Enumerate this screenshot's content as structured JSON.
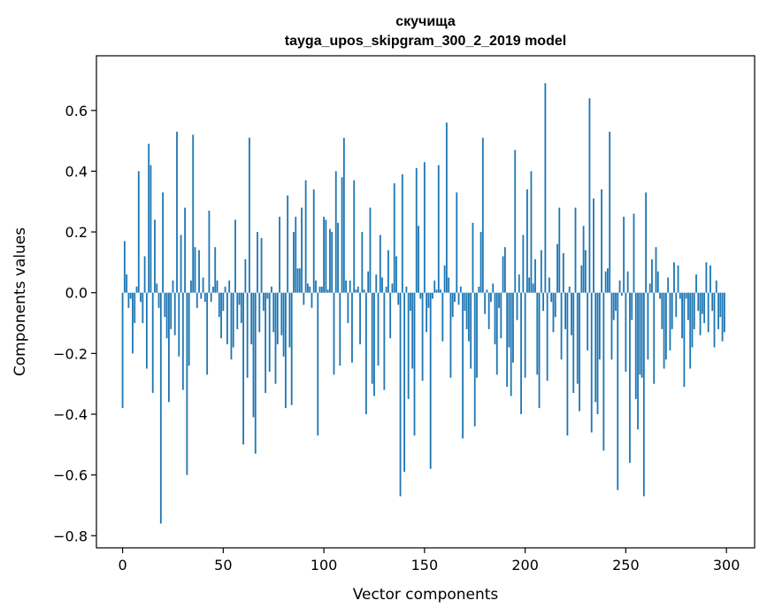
{
  "chart_data": {
    "type": "bar",
    "title_line1": "скучища",
    "title_line2": "tayga_upos_skipgram_300_2_2019 model",
    "xlabel": "Vector components",
    "ylabel": "Components values",
    "xlim": [
      -13,
      314
    ],
    "ylim": [
      -0.84,
      0.78
    ],
    "xticks": [
      0,
      50,
      100,
      150,
      200,
      250,
      300
    ],
    "xtick_labels": [
      "0",
      "50",
      "100",
      "150",
      "200",
      "250",
      "300"
    ],
    "yticks": [
      -0.8,
      -0.6,
      -0.4,
      -0.2,
      0.0,
      0.2,
      0.4,
      0.6
    ],
    "ytick_labels": [
      "−0.8",
      "−0.6",
      "−0.4",
      "−0.2",
      "0.0",
      "0.2",
      "0.4",
      "0.6"
    ],
    "bar_color": "#1f77b4",
    "grid": false,
    "legend": "none",
    "values": [
      -0.38,
      0.17,
      0.06,
      -0.05,
      -0.02,
      -0.2,
      -0.1,
      0.02,
      0.4,
      -0.03,
      -0.1,
      0.12,
      -0.25,
      0.49,
      0.42,
      -0.33,
      0.24,
      0.03,
      -0.05,
      -0.76,
      0.33,
      -0.08,
      -0.15,
      -0.36,
      -0.12,
      0.04,
      -0.14,
      0.53,
      -0.21,
      0.19,
      -0.32,
      0.28,
      -0.6,
      -0.24,
      0.04,
      0.52,
      0.15,
      -0.05,
      0.14,
      -0.02,
      0.05,
      -0.03,
      -0.27,
      0.27,
      -0.03,
      0.02,
      0.15,
      0.04,
      -0.08,
      -0.15,
      -0.06,
      0.02,
      -0.17,
      0.04,
      -0.22,
      -0.18,
      0.24,
      -0.12,
      -0.04,
      -0.1,
      -0.5,
      0.11,
      -0.28,
      0.51,
      -0.17,
      -0.41,
      -0.53,
      0.2,
      -0.13,
      0.18,
      -0.06,
      -0.33,
      -0.02,
      -0.26,
      0.02,
      -0.13,
      -0.3,
      -0.17,
      0.25,
      -0.14,
      -0.21,
      -0.38,
      0.32,
      -0.18,
      -0.37,
      0.2,
      0.25,
      0.08,
      0.08,
      0.28,
      -0.04,
      0.37,
      0.03,
      0.02,
      -0.05,
      0.34,
      0.04,
      -0.47,
      0.02,
      0.02,
      0.25,
      0.24,
      0.01,
      0.21,
      0.2,
      -0.27,
      0.4,
      0.23,
      -0.24,
      0.38,
      0.51,
      0.04,
      -0.1,
      0.04,
      -0.23,
      0.37,
      0.01,
      0.02,
      -0.17,
      0.2,
      0.01,
      -0.4,
      0.07,
      0.28,
      -0.3,
      -0.34,
      0.06,
      -0.24,
      0.19,
      0.05,
      -0.32,
      0.02,
      0.14,
      -0.15,
      0.03,
      0.36,
      0.12,
      -0.04,
      -0.67,
      0.39,
      -0.59,
      0.02,
      -0.35,
      -0.06,
      -0.25,
      -0.47,
      0.41,
      0.22,
      -0.02,
      -0.29,
      0.43,
      -0.13,
      -0.05,
      -0.58,
      -0.02,
      0.04,
      0.01,
      0.42,
      0.01,
      -0.16,
      0.09,
      0.56,
      0.05,
      -0.28,
      -0.08,
      -0.03,
      0.33,
      -0.04,
      0.02,
      -0.48,
      -0.06,
      -0.12,
      -0.16,
      -0.25,
      0.23,
      -0.44,
      -0.28,
      0.02,
      0.2,
      0.51,
      -0.07,
      0.01,
      -0.12,
      -0.03,
      0.03,
      -0.17,
      -0.27,
      -0.05,
      -0.15,
      0.12,
      0.15,
      -0.31,
      -0.18,
      -0.34,
      -0.23,
      0.47,
      -0.09,
      0.06,
      -0.4,
      0.19,
      -0.28,
      0.34,
      0.05,
      0.4,
      0.03,
      0.11,
      -0.27,
      -0.38,
      0.14,
      -0.06,
      0.69,
      -0.29,
      0.05,
      -0.03,
      -0.13,
      -0.08,
      0.16,
      0.28,
      -0.22,
      0.13,
      -0.12,
      -0.47,
      0.02,
      -0.14,
      -0.33,
      0.28,
      -0.3,
      -0.39,
      0.09,
      0.22,
      0.14,
      -0.19,
      0.64,
      -0.46,
      0.31,
      -0.36,
      -0.4,
      -0.22,
      0.34,
      -0.52,
      0.07,
      0.08,
      0.53,
      -0.22,
      -0.09,
      -0.06,
      -0.65,
      0.04,
      -0.01,
      0.25,
      -0.26,
      0.07,
      -0.56,
      -0.09,
      0.26,
      -0.35,
      -0.45,
      -0.27,
      -0.28,
      -0.67,
      0.33,
      -0.22,
      0.03,
      0.11,
      -0.3,
      0.15,
      0.07,
      -0.02,
      -0.12,
      -0.25,
      -0.22,
      0.05,
      -0.19,
      -0.12,
      0.1,
      -0.08,
      0.09,
      -0.02,
      -0.15,
      -0.31,
      -0.02,
      -0.09,
      -0.25,
      -0.18,
      -0.12,
      0.06,
      -0.06,
      -0.14,
      -0.07,
      -0.1,
      0.1,
      -0.13,
      0.09,
      -0.06,
      -0.18,
      0.04,
      -0.12,
      -0.08,
      -0.16,
      -0.13
    ]
  }
}
